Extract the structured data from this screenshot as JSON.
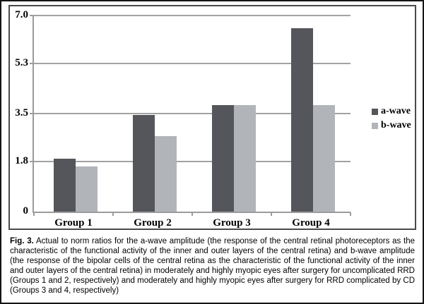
{
  "figure": {
    "caption_label": "Fig. 3.",
    "caption_text": "Actual to norm ratios for the a-wave amplitude (the response of the central retinal photoreceptors as the characteristic of the functional activity of the inner and outer layers of the central retina) and b-wave amplitude (the response of the bipolar cells of the central retina as the characteristic of the functional activity of the inner and outer layers of the central retina) in moderately and highly myopic eyes after surgery for uncomplicated RRD (Groups 1 and 2, respectively) and moderately and highly myopic eyes after surgery for RRD complicated by CD (Groups 3 and 4, respectively)"
  },
  "chart_data": {
    "type": "bar",
    "categories": [
      "Group 1",
      "Group 2",
      "Group 3",
      "Group 4"
    ],
    "series": [
      {
        "name": "a-wave",
        "color": "#54565b",
        "values": [
          1.9,
          3.45,
          3.8,
          6.55
        ]
      },
      {
        "name": "b-wave",
        "color": "#b1b4b9",
        "values": [
          1.6,
          2.7,
          3.8,
          3.8
        ]
      }
    ],
    "title": "",
    "xlabel": "",
    "ylabel": "",
    "ylim": [
      0,
      7.0
    ],
    "yticks": [
      0,
      1.8,
      3.5,
      5.3,
      7.0
    ],
    "ytick_labels": [
      "0",
      "1.8",
      "3.5",
      "5.3",
      "7.0"
    ],
    "grid": true,
    "legend_position": "right"
  },
  "colors": {
    "grid": "#a2a2a2",
    "axis": "#9b9b9b",
    "text": "#000000"
  }
}
